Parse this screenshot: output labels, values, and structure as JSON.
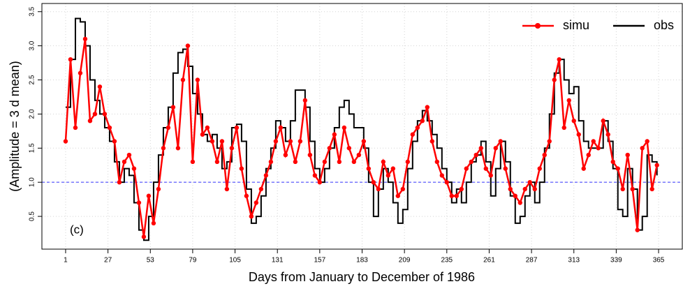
{
  "chart_data": {
    "type": "line",
    "xlabel": "Days from January to December of 1986",
    "ylabel": "(Amplitude = 3 d mean)",
    "annotation": "(c)",
    "xlim": [
      -13.56,
      379.56
    ],
    "ylim": [
      0.02,
      3.62
    ],
    "xticks": [
      1,
      27,
      53,
      79,
      105,
      131,
      157,
      183,
      209,
      235,
      261,
      287,
      313,
      339,
      365
    ],
    "yticks": [
      0.5,
      {
        "value": 1,
        "label": "1.0"
      },
      1.5,
      {
        "value": 2,
        "label": "2.0"
      },
      2.5,
      {
        "value": 3,
        "label": "3.0"
      },
      3.5
    ],
    "grid": true,
    "hline": 1,
    "hline_color": "#3333ff",
    "legend": "top-right",
    "x": [
      1,
      4,
      7,
      10,
      13,
      16,
      19,
      22,
      25,
      28,
      31,
      34,
      37,
      40,
      43,
      46,
      49,
      52,
      55,
      58,
      61,
      64,
      67,
      70,
      73,
      76,
      79,
      82,
      85,
      88,
      91,
      94,
      97,
      100,
      103,
      106,
      109,
      112,
      115,
      118,
      121,
      124,
      127,
      130,
      133,
      136,
      139,
      142,
      145,
      148,
      151,
      154,
      157,
      160,
      163,
      166,
      169,
      172,
      175,
      178,
      181,
      184,
      187,
      190,
      193,
      196,
      199,
      202,
      205,
      208,
      211,
      214,
      217,
      220,
      223,
      226,
      229,
      232,
      235,
      238,
      241,
      244,
      247,
      250,
      253,
      256,
      259,
      262,
      265,
      268,
      271,
      274,
      277,
      280,
      283,
      286,
      289,
      292,
      295,
      298,
      301,
      304,
      307,
      310,
      313,
      316,
      319,
      322,
      325,
      328,
      331,
      334,
      337,
      340,
      343,
      346,
      349,
      352,
      355,
      358,
      361,
      364
    ],
    "series": [
      {
        "name": "simu",
        "color": "#ff0000",
        "markers": true,
        "step": false,
        "values": [
          1.6,
          2.8,
          1.8,
          2.6,
          3.1,
          1.9,
          2.0,
          2.4,
          2.0,
          1.8,
          1.6,
          1.0,
          1.3,
          1.4,
          1.2,
          0.7,
          0.2,
          0.8,
          0.4,
          0.9,
          1.5,
          1.8,
          2.1,
          1.5,
          2.5,
          3.0,
          1.3,
          2.5,
          1.7,
          1.8,
          1.6,
          1.3,
          1.6,
          0.9,
          1.5,
          1.8,
          1.2,
          0.8,
          0.5,
          0.7,
          0.9,
          1.1,
          1.3,
          1.6,
          1.8,
          1.4,
          1.6,
          1.3,
          1.6,
          2.2,
          1.4,
          1.1,
          1.0,
          1.3,
          1.5,
          1.7,
          1.3,
          1.8,
          1.5,
          1.3,
          1.4,
          1.6,
          1.2,
          1.0,
          0.9,
          1.3,
          1.1,
          1.2,
          0.8,
          0.9,
          1.3,
          1.7,
          1.8,
          1.9,
          2.1,
          1.6,
          1.3,
          1.1,
          1.0,
          0.8,
          0.8,
          0.9,
          1.2,
          1.3,
          1.4,
          1.5,
          1.2,
          1.1,
          1.5,
          1.6,
          1.2,
          0.9,
          0.8,
          0.7,
          0.9,
          1.0,
          0.9,
          1.2,
          1.4,
          1.6,
          2.5,
          2.8,
          1.8,
          2.2,
          1.9,
          1.7,
          1.2,
          1.4,
          1.6,
          1.5,
          1.9,
          1.7,
          1.3,
          1.2,
          0.9,
          1.4,
          0.9,
          0.3,
          1.5,
          1.6,
          0.9,
          1.25
        ]
      },
      {
        "name": "obs",
        "color": "#000000",
        "markers": false,
        "step": true,
        "values": [
          2.1,
          2.8,
          3.4,
          3.35,
          3.0,
          2.5,
          2.2,
          2.0,
          1.8,
          1.6,
          1.3,
          1.0,
          1.2,
          1.1,
          0.7,
          0.3,
          0.15,
          0.5,
          1.0,
          1.4,
          1.8,
          2.1,
          2.6,
          2.9,
          2.95,
          2.7,
          2.3,
          2.0,
          1.7,
          1.6,
          1.7,
          1.5,
          1.2,
          1.3,
          1.8,
          1.85,
          1.6,
          0.9,
          0.4,
          0.5,
          0.8,
          1.2,
          1.5,
          1.9,
          1.8,
          1.6,
          1.9,
          2.35,
          2.35,
          2.1,
          1.6,
          1.2,
          1.0,
          1.2,
          1.5,
          1.8,
          2.1,
          2.2,
          2.0,
          1.8,
          1.8,
          1.5,
          1.0,
          0.5,
          0.9,
          1.2,
          1.0,
          0.7,
          0.4,
          0.6,
          1.2,
          1.6,
          1.9,
          2.05,
          1.9,
          1.7,
          1.5,
          1.2,
          1.0,
          0.7,
          0.9,
          0.7,
          1.0,
          1.3,
          1.4,
          1.6,
          1.3,
          0.8,
          1.2,
          1.6,
          1.3,
          0.8,
          0.4,
          0.5,
          0.8,
          1.0,
          0.7,
          1.0,
          1.5,
          2.0,
          2.6,
          2.8,
          2.5,
          2.3,
          2.4,
          1.9,
          1.6,
          1.5,
          1.5,
          1.5,
          1.9,
          1.6,
          1.2,
          0.6,
          0.5,
          1.2,
          0.9,
          0.3,
          0.5,
          1.4,
          1.3,
          1.1
        ]
      }
    ]
  }
}
